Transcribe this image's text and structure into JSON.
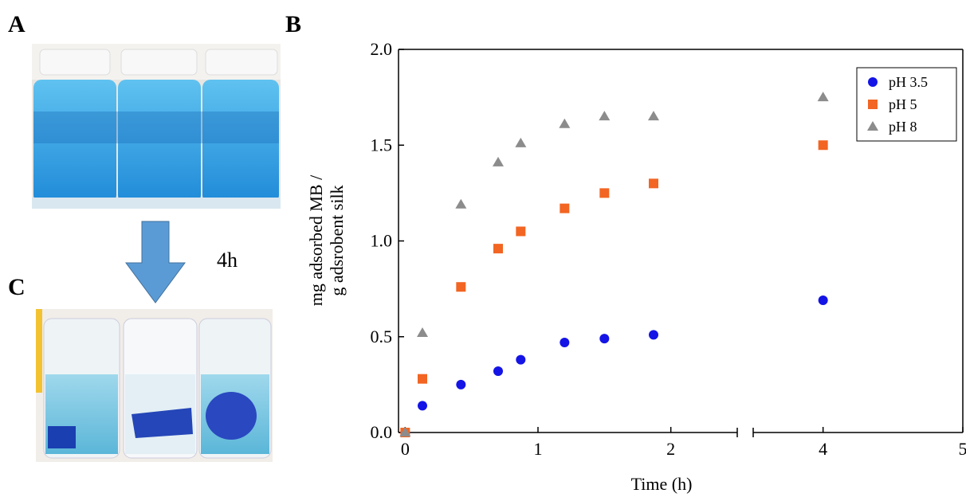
{
  "panels": {
    "a": "A",
    "b": "B",
    "c": "C"
  },
  "arrow_label": "4h",
  "chart_data": {
    "type": "scatter",
    "xlabel": "Time (h)",
    "ylabel": [
      "mg adsorbed MB /",
      "g adsrobent silk"
    ],
    "x": [
      0,
      0.13,
      0.42,
      0.7,
      0.87,
      1.2,
      1.5,
      1.87,
      4
    ],
    "series": [
      {
        "name": "pH 3.5",
        "color": "#1414e6",
        "marker": "circle",
        "values": [
          0,
          0.14,
          0.25,
          0.32,
          0.38,
          0.47,
          0.49,
          0.51,
          0.69
        ]
      },
      {
        "name": "pH 5",
        "color": "#f26522",
        "marker": "square",
        "values": [
          0,
          0.28,
          0.76,
          0.96,
          1.05,
          1.17,
          1.25,
          1.3,
          1.5
        ]
      },
      {
        "name": "pH 8",
        "color": "#8c8c8c",
        "marker": "triangle",
        "values": [
          0,
          0.52,
          1.19,
          1.41,
          1.51,
          1.61,
          1.65,
          1.65,
          1.75
        ]
      }
    ],
    "xlim": [
      -0.05,
      5
    ],
    "xbreak": [
      2.5,
      3.5
    ],
    "xticks": [
      0,
      1,
      2,
      4,
      5
    ],
    "ylim": [
      0,
      2
    ],
    "yticks": [
      {
        "value": 0,
        "label": "0.0"
      },
      0.5,
      {
        "value": 1,
        "label": "1.0"
      },
      1.5,
      {
        "value": 2,
        "label": "2.0"
      }
    ],
    "legend": "upper right"
  }
}
